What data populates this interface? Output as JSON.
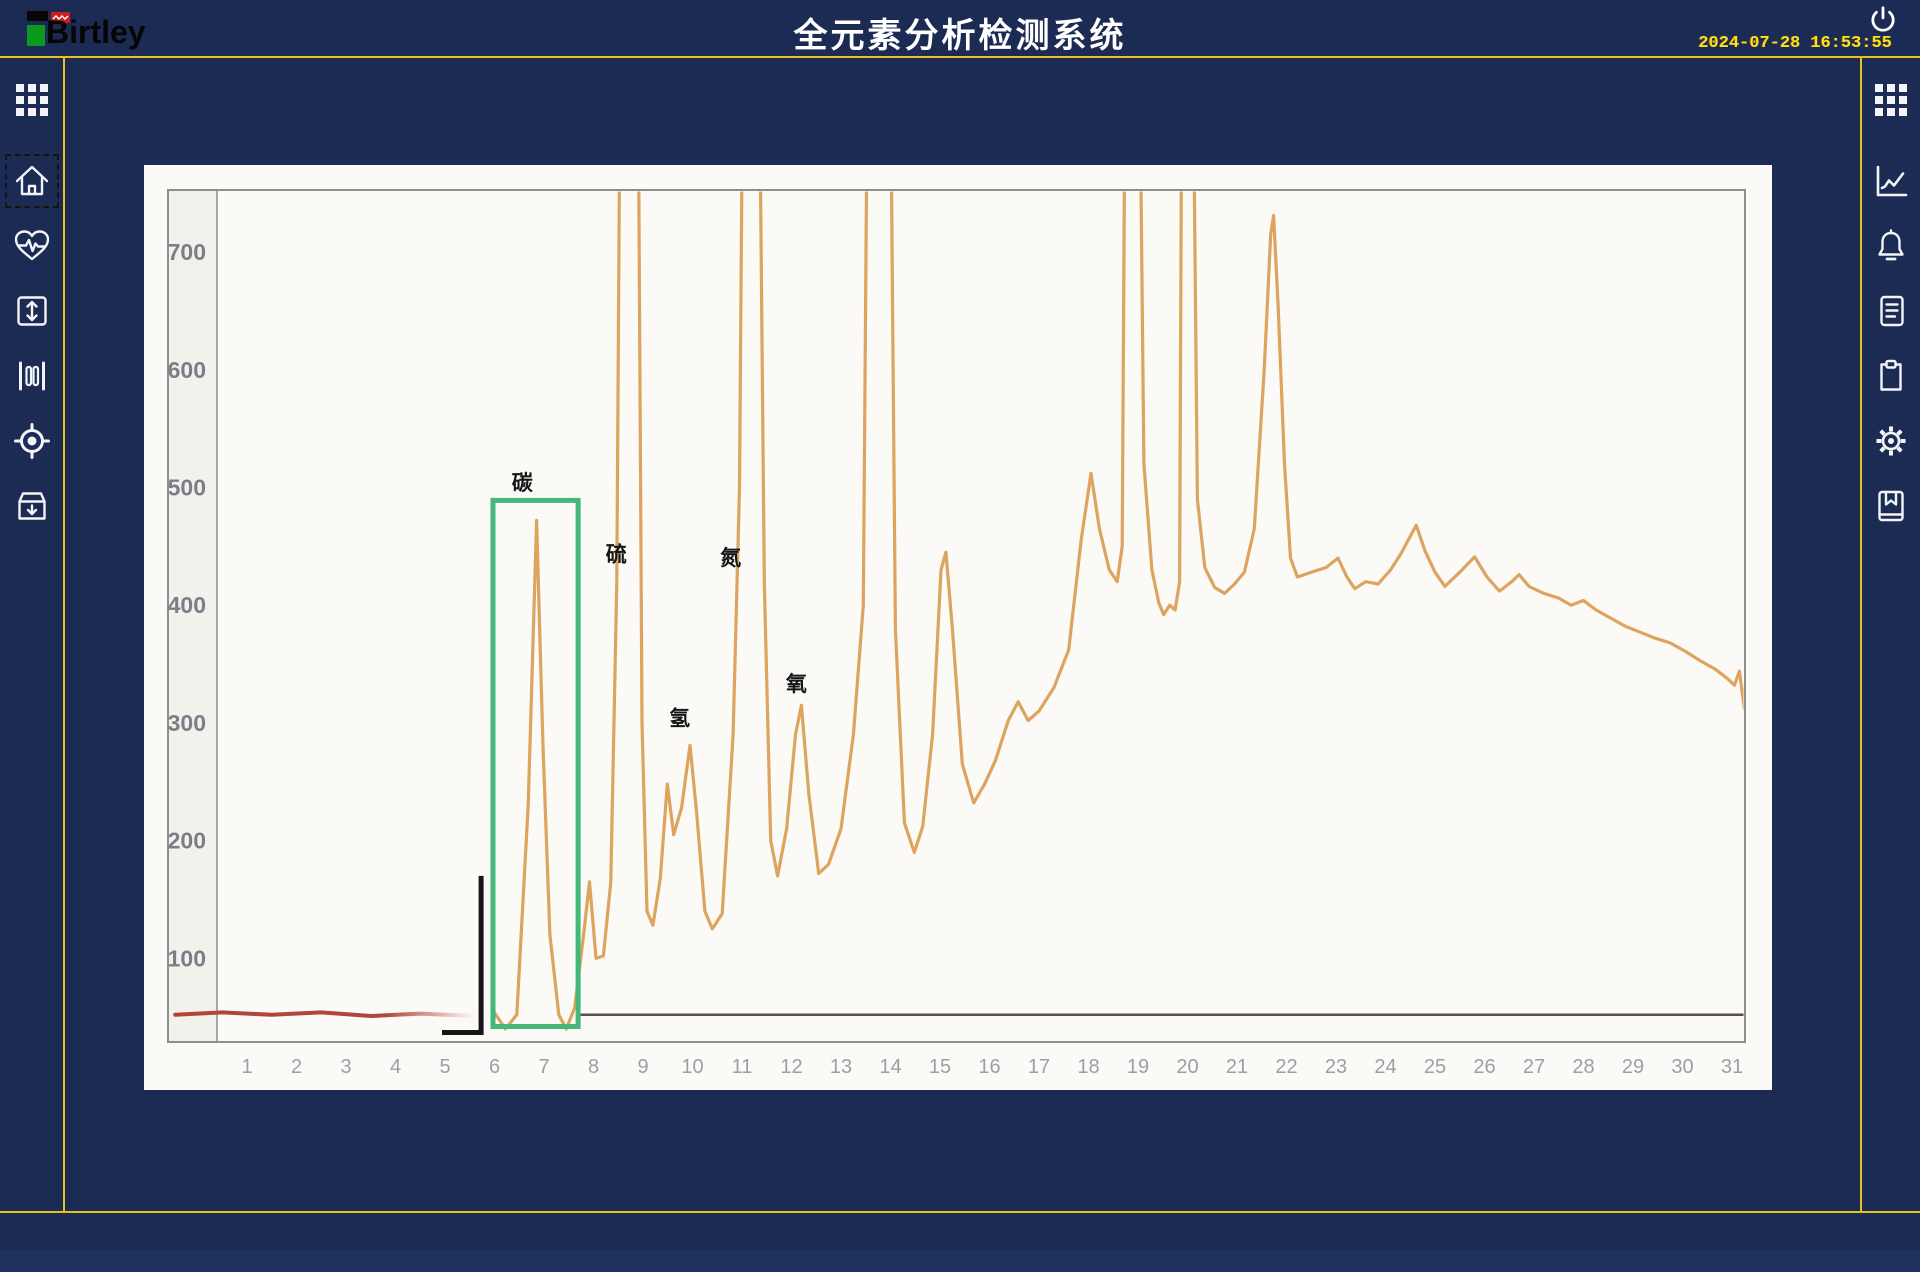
{
  "header": {
    "logo_text": "Birtley",
    "title": "全元素分析检测系统",
    "date": "2024-07-28",
    "time": "16:53:55"
  },
  "left_sidebar": {
    "items": [
      {
        "name": "apps-menu",
        "icon": "grid",
        "active": false
      },
      {
        "name": "home",
        "icon": "home",
        "active": true
      },
      {
        "name": "health-monitor",
        "icon": "heartbeat",
        "active": false
      },
      {
        "name": "vertical-range",
        "icon": "v-resize",
        "active": false
      },
      {
        "name": "columns",
        "icon": "bars",
        "active": false
      },
      {
        "name": "target",
        "icon": "target",
        "active": false
      },
      {
        "name": "archive",
        "icon": "archive",
        "active": false
      }
    ]
  },
  "right_sidebar": {
    "items": [
      {
        "name": "apps-menu",
        "icon": "grid",
        "active": false
      },
      {
        "name": "trend-chart",
        "icon": "chart-line",
        "active": false
      },
      {
        "name": "alerts",
        "icon": "bell",
        "active": false
      },
      {
        "name": "records",
        "icon": "document",
        "active": false
      },
      {
        "name": "tasks",
        "icon": "clipboard",
        "active": false
      },
      {
        "name": "settings",
        "icon": "gear",
        "active": false
      },
      {
        "name": "manual",
        "icon": "book",
        "active": false
      }
    ]
  },
  "chart_data": {
    "type": "line",
    "title": "",
    "xlabel": "",
    "ylabel": "",
    "x_ticks": [
      1,
      2,
      3,
      4,
      5,
      6,
      7,
      8,
      9,
      10,
      11,
      12,
      13,
      14,
      15,
      16,
      17,
      18,
      19,
      20,
      21,
      22,
      23,
      24,
      25,
      26,
      27,
      28,
      29,
      30,
      31
    ],
    "y_ticks": [
      700,
      600,
      500,
      400,
      300,
      200,
      100
    ],
    "xlim": [
      0.4,
      31.3
    ],
    "ylim": [
      0,
      760
    ],
    "grid": false,
    "legend": "none",
    "annotations": [
      {
        "label": "碳",
        "t": 6.56,
        "v": 498
      },
      {
        "label": "硫",
        "t": 8.46,
        "v": 437
      },
      {
        "label": "氢",
        "t": 9.74,
        "v": 298
      },
      {
        "label": "氮",
        "t": 10.77,
        "v": 434
      },
      {
        "label": "氧",
        "t": 12.1,
        "v": 327
      }
    ],
    "highlight_box": {
      "element": "碳",
      "t_range": [
        5.97,
        7.69
      ],
      "v_range": [
        42,
        489
      ]
    },
    "integration_mark": {
      "t": 5.73,
      "t_foot": 4.94,
      "v_top": 170,
      "v_bottom": 37
    },
    "colors": {
      "signal": "#dca45e",
      "baseline_red": "#b2453c",
      "baseline_dark": "#55504a",
      "highlight": "#44b878"
    },
    "series": [
      {
        "name": "baseline-red",
        "color": "#b2453c",
        "width": 4,
        "points": [
          [
            -0.45,
            52
          ],
          [
            0.5,
            54
          ],
          [
            1.5,
            52
          ],
          [
            2.5,
            54
          ],
          [
            3.5,
            51
          ],
          [
            4.5,
            53
          ],
          [
            5.6,
            51
          ]
        ]
      },
      {
        "name": "baseline-dark",
        "color": "#55504a",
        "width": 2.5,
        "points": [
          [
            7.7,
            52
          ],
          [
            31.25,
            52
          ]
        ]
      },
      {
        "name": "signal",
        "color": "#dca45e",
        "width": 3.2,
        "points": [
          [
            5.98,
            55
          ],
          [
            6.22,
            40
          ],
          [
            6.45,
            52
          ],
          [
            6.68,
            230
          ],
          [
            6.85,
            472
          ],
          [
            6.98,
            280
          ],
          [
            7.12,
            120
          ],
          [
            7.3,
            52
          ],
          [
            7.45,
            40
          ],
          [
            7.62,
            58
          ],
          [
            7.8,
            120
          ],
          [
            7.92,
            165
          ],
          [
            8.05,
            100
          ],
          [
            8.2,
            102
          ],
          [
            8.35,
            165
          ],
          [
            8.47,
            420
          ],
          [
            8.56,
            1000
          ],
          [
            8.88,
            1000
          ],
          [
            8.98,
            300
          ],
          [
            9.08,
            140
          ],
          [
            9.2,
            128
          ],
          [
            9.35,
            168
          ],
          [
            9.49,
            248
          ],
          [
            9.62,
            205
          ],
          [
            9.78,
            228
          ],
          [
            9.95,
            281
          ],
          [
            10.08,
            225
          ],
          [
            10.25,
            140
          ],
          [
            10.4,
            125
          ],
          [
            10.6,
            138
          ],
          [
            10.82,
            290
          ],
          [
            10.95,
            500
          ],
          [
            11.04,
            1000
          ],
          [
            11.32,
            1000
          ],
          [
            11.45,
            420
          ],
          [
            11.58,
            200
          ],
          [
            11.72,
            170
          ],
          [
            11.9,
            210
          ],
          [
            12.08,
            290
          ],
          [
            12.2,
            315
          ],
          [
            12.35,
            240
          ],
          [
            12.55,
            172
          ],
          [
            12.75,
            180
          ],
          [
            13.0,
            210
          ],
          [
            13.25,
            290
          ],
          [
            13.45,
            400
          ],
          [
            13.56,
            1000
          ],
          [
            13.97,
            1000
          ],
          [
            14.1,
            380
          ],
          [
            14.28,
            215
          ],
          [
            14.48,
            190
          ],
          [
            14.65,
            212
          ],
          [
            14.85,
            290
          ],
          [
            15.02,
            430
          ],
          [
            15.12,
            445
          ],
          [
            15.25,
            380
          ],
          [
            15.45,
            265
          ],
          [
            15.68,
            232
          ],
          [
            15.9,
            248
          ],
          [
            16.12,
            268
          ],
          [
            16.38,
            302
          ],
          [
            16.58,
            318
          ],
          [
            16.78,
            302
          ],
          [
            17.0,
            310
          ],
          [
            17.3,
            330
          ],
          [
            17.6,
            362
          ],
          [
            17.85,
            455
          ],
          [
            18.05,
            512
          ],
          [
            18.22,
            465
          ],
          [
            18.42,
            430
          ],
          [
            18.58,
            420
          ],
          [
            18.68,
            450
          ],
          [
            18.76,
            1000
          ],
          [
            19.0,
            1000
          ],
          [
            19.12,
            520
          ],
          [
            19.28,
            430
          ],
          [
            19.42,
            402
          ],
          [
            19.52,
            392
          ],
          [
            19.64,
            400
          ],
          [
            19.75,
            396
          ],
          [
            19.84,
            420
          ],
          [
            19.9,
            1000
          ],
          [
            20.08,
            1000
          ],
          [
            20.2,
            490
          ],
          [
            20.35,
            432
          ],
          [
            20.55,
            415
          ],
          [
            20.75,
            410
          ],
          [
            20.95,
            418
          ],
          [
            21.15,
            428
          ],
          [
            21.35,
            465
          ],
          [
            21.55,
            600
          ],
          [
            21.68,
            715
          ],
          [
            21.74,
            731
          ],
          [
            21.83,
            655
          ],
          [
            21.96,
            520
          ],
          [
            22.08,
            440
          ],
          [
            22.22,
            424
          ],
          [
            22.5,
            428
          ],
          [
            22.8,
            432
          ],
          [
            23.04,
            440
          ],
          [
            23.22,
            424
          ],
          [
            23.38,
            414
          ],
          [
            23.6,
            420
          ],
          [
            23.85,
            418
          ],
          [
            24.1,
            430
          ],
          [
            24.3,
            443
          ],
          [
            24.62,
            468
          ],
          [
            24.8,
            446
          ],
          [
            25.0,
            428
          ],
          [
            25.2,
            416
          ],
          [
            25.5,
            428
          ],
          [
            25.8,
            441
          ],
          [
            26.05,
            424
          ],
          [
            26.3,
            412
          ],
          [
            26.55,
            420
          ],
          [
            26.7,
            426
          ],
          [
            26.9,
            416
          ],
          [
            27.2,
            410
          ],
          [
            27.5,
            406
          ],
          [
            27.75,
            400
          ],
          [
            28.0,
            404
          ],
          [
            28.25,
            396
          ],
          [
            28.55,
            389
          ],
          [
            28.85,
            382
          ],
          [
            29.15,
            377
          ],
          [
            29.45,
            372
          ],
          [
            29.75,
            368
          ],
          [
            30.05,
            361
          ],
          [
            30.35,
            353
          ],
          [
            30.65,
            346
          ],
          [
            30.9,
            338
          ],
          [
            31.05,
            332
          ],
          [
            31.15,
            344
          ],
          [
            31.25,
            312
          ]
        ]
      }
    ]
  }
}
